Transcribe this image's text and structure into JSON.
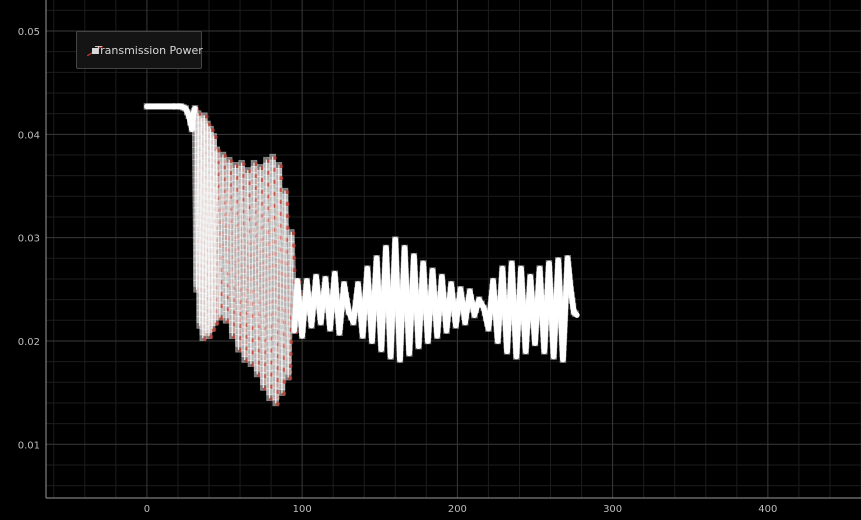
{
  "chart_data": {
    "type": "line",
    "title": "",
    "xlabel": "",
    "ylabel": "",
    "xlim": [
      -65,
      460
    ],
    "ylim": [
      0.0048,
      0.053
    ],
    "x_ticks": [
      0,
      100,
      200,
      300,
      400
    ],
    "y_ticks": [
      0.01,
      0.02,
      0.03,
      0.04,
      0.05
    ],
    "x_tick_labels": [
      "0",
      "100",
      "200",
      "300",
      "400"
    ],
    "y_tick_labels": [
      "0.01",
      "0.02",
      "0.03",
      "0.04",
      "0.05"
    ],
    "grid": true,
    "legend_position": "top-left",
    "series": [
      {
        "name": "Transmission Power",
        "color": "#ffffff",
        "marker_color": "#c0392b",
        "points": [
          [
            0,
            0.0427
          ],
          [
            8,
            0.0427
          ],
          [
            16,
            0.0427
          ],
          [
            22,
            0.0427
          ],
          [
            25,
            0.0425
          ],
          [
            27,
            0.0418
          ],
          [
            29,
            0.0405
          ],
          [
            30,
            0.042
          ],
          [
            31,
            0.0425
          ],
          [
            32,
            0.025
          ],
          [
            33,
            0.042
          ],
          [
            34,
            0.0215
          ],
          [
            35,
            0.0415
          ],
          [
            36,
            0.0203
          ],
          [
            37,
            0.0418
          ],
          [
            38,
            0.0208
          ],
          [
            39,
            0.041
          ],
          [
            40,
            0.0205
          ],
          [
            41,
            0.0405
          ],
          [
            42,
            0.0212
          ],
          [
            43,
            0.0398
          ],
          [
            44,
            0.0218
          ],
          [
            45,
            0.0385
          ],
          [
            47,
            0.0223
          ],
          [
            49,
            0.038
          ],
          [
            51,
            0.022
          ],
          [
            53,
            0.0375
          ],
          [
            55,
            0.0205
          ],
          [
            57,
            0.037
          ],
          [
            59,
            0.0192
          ],
          [
            61,
            0.0372
          ],
          [
            63,
            0.0182
          ],
          [
            65,
            0.0365
          ],
          [
            67,
            0.0178
          ],
          [
            69,
            0.0372
          ],
          [
            71,
            0.0168
          ],
          [
            73,
            0.0368
          ],
          [
            75,
            0.0155
          ],
          [
            77,
            0.0375
          ],
          [
            79,
            0.0145
          ],
          [
            81,
            0.0378
          ],
          [
            83,
            0.014
          ],
          [
            85,
            0.037
          ],
          [
            87,
            0.015
          ],
          [
            89,
            0.0345
          ],
          [
            91,
            0.0165
          ],
          [
            93,
            0.0305
          ],
          [
            95,
            0.021
          ],
          [
            97,
            0.0258
          ],
          [
            100,
            0.0205
          ],
          [
            103,
            0.0258
          ],
          [
            106,
            0.0215
          ],
          [
            109,
            0.0262
          ],
          [
            112,
            0.0218
          ],
          [
            115,
            0.026
          ],
          [
            118,
            0.0212
          ],
          [
            121,
            0.0265
          ],
          [
            124,
            0.0208
          ],
          [
            127,
            0.0255
          ],
          [
            130,
            0.0228
          ],
          [
            133,
            0.0218
          ],
          [
            136,
            0.0255
          ],
          [
            139,
            0.0205
          ],
          [
            142,
            0.027
          ],
          [
            145,
            0.02
          ],
          [
            148,
            0.028
          ],
          [
            151,
            0.0192
          ],
          [
            154,
            0.029
          ],
          [
            157,
            0.0185
          ],
          [
            160,
            0.0298
          ],
          [
            163,
            0.0182
          ],
          [
            166,
            0.029
          ],
          [
            169,
            0.0188
          ],
          [
            172,
            0.0282
          ],
          [
            175,
            0.0195
          ],
          [
            178,
            0.0275
          ],
          [
            181,
            0.02
          ],
          [
            184,
            0.0268
          ],
          [
            187,
            0.0205
          ],
          [
            190,
            0.0262
          ],
          [
            193,
            0.021
          ],
          [
            196,
            0.0255
          ],
          [
            199,
            0.0215
          ],
          [
            202,
            0.025
          ],
          [
            205,
            0.0218
          ],
          [
            208,
            0.0248
          ],
          [
            211,
            0.0225
          ],
          [
            214,
            0.024
          ],
          [
            217,
            0.0232
          ],
          [
            220,
            0.0212
          ],
          [
            223,
            0.0258
          ],
          [
            226,
            0.02
          ],
          [
            229,
            0.027
          ],
          [
            232,
            0.019
          ],
          [
            235,
            0.0275
          ],
          [
            238,
            0.0185
          ],
          [
            241,
            0.027
          ],
          [
            244,
            0.019
          ],
          [
            247,
            0.0262
          ],
          [
            250,
            0.0198
          ],
          [
            253,
            0.027
          ],
          [
            256,
            0.019
          ],
          [
            259,
            0.0275
          ],
          [
            262,
            0.0185
          ],
          [
            265,
            0.0278
          ],
          [
            268,
            0.0182
          ],
          [
            271,
            0.028
          ],
          [
            273,
            0.025
          ],
          [
            275,
            0.0228
          ],
          [
            277,
            0.0225
          ]
        ]
      }
    ]
  }
}
